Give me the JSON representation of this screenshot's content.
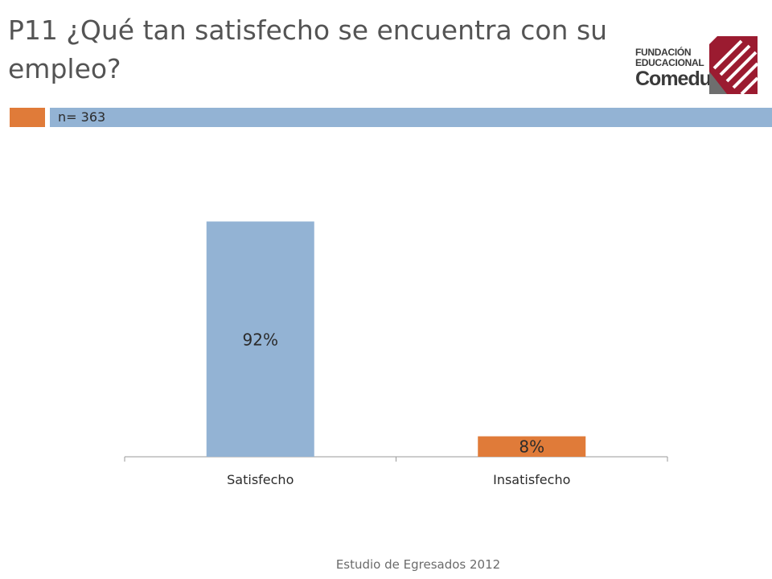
{
  "slide": {
    "title": "P11 ¿Qué tan satisfecho se encuentra con su empleo?",
    "sample_label": "n= 363",
    "footer": "Estudio de Egresados 2012"
  },
  "logo": {
    "line1": "FUNDACIÓN",
    "line2": "EDUCACIONAL",
    "line3": "Comeduc",
    "color": "#9b1b30"
  },
  "colors": {
    "accent": "#e07b39",
    "band": "#93b3d4"
  },
  "chart_data": {
    "type": "bar",
    "categories": [
      "Satisfecho",
      "Insatisfecho"
    ],
    "values": [
      92,
      8
    ],
    "data_labels": [
      "92%",
      "8%"
    ],
    "bar_colors": [
      "#93b3d4",
      "#e07b39"
    ],
    "ylim": [
      0,
      100
    ],
    "grid": false,
    "legend": "none"
  }
}
